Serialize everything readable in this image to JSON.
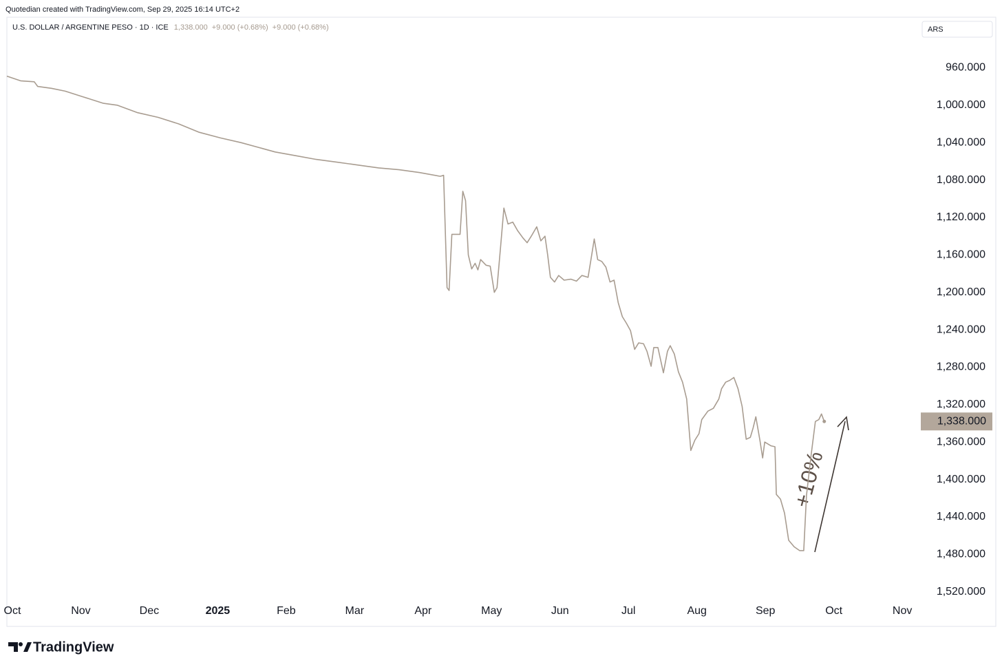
{
  "header": {
    "credit": "Quotedian created with TradingView.com, Sep 29, 2025 16:14 UTC+2"
  },
  "footer": {
    "brand": "TradingView"
  },
  "chart_data": {
    "type": "line",
    "legend_price": "1,338.000",
    "legend_change_1": "+9.000 (+0.68%)",
    "legend_change_2": "+9.000 (+0.68%)",
    "currency": "ARS",
    "annotation": "+10%",
    "last_value_label": "1,338.000",
    "inverted": true,
    "grid": false,
    "xlim": [
      -0.08,
      13.24
    ],
    "xticks": [
      {
        "value": 0,
        "label": "Oct"
      },
      {
        "value": 1,
        "label": "Nov"
      },
      {
        "value": 2,
        "label": "Dec"
      },
      {
        "value": 3,
        "label": "2025"
      },
      {
        "value": 4,
        "label": "Feb"
      },
      {
        "value": 5,
        "label": "Mar"
      },
      {
        "value": 6,
        "label": "Apr"
      },
      {
        "value": 7,
        "label": "May"
      },
      {
        "value": 8,
        "label": "Jun"
      },
      {
        "value": 9,
        "label": "Jul"
      },
      {
        "value": 10,
        "label": "Aug"
      },
      {
        "value": 11,
        "label": "Sep"
      },
      {
        "value": 12,
        "label": "Oct"
      },
      {
        "value": 13,
        "label": "Nov"
      }
    ],
    "ylim": [
      906,
      1557
    ],
    "yticks": [
      {
        "value": 960,
        "label": "960.000"
      },
      {
        "value": 1000,
        "label": "1,000.000"
      },
      {
        "value": 1040,
        "label": "1,040.000"
      },
      {
        "value": 1080,
        "label": "1,080.000"
      },
      {
        "value": 1120,
        "label": "1,120.000"
      },
      {
        "value": 1160,
        "label": "1,160.000"
      },
      {
        "value": 1200,
        "label": "1,200.000"
      },
      {
        "value": 1240,
        "label": "1,240.000"
      },
      {
        "value": 1280,
        "label": "1,280.000"
      },
      {
        "value": 1320,
        "label": "1,320.000"
      },
      {
        "value": 1360,
        "label": "1,360.000"
      },
      {
        "value": 1400,
        "label": "1,400.000"
      },
      {
        "value": 1440,
        "label": "1,440.000"
      },
      {
        "value": 1480,
        "label": "1,480.000"
      },
      {
        "value": 1520,
        "label": "1,520.000"
      }
    ],
    "x": [
      -0.08,
      0.12,
      0.32,
      0.37,
      0.57,
      0.77,
      1.03,
      1.33,
      1.53,
      1.83,
      2.13,
      2.43,
      2.73,
      3.04,
      3.34,
      3.59,
      3.84,
      4.14,
      4.44,
      4.75,
      5.05,
      5.35,
      5.65,
      5.95,
      6.25,
      6.3,
      6.35,
      6.38,
      6.42,
      6.54,
      6.58,
      6.62,
      6.66,
      6.71,
      6.76,
      6.8,
      6.84,
      6.92,
      6.98,
      7.04,
      7.08,
      7.13,
      7.18,
      7.24,
      7.31,
      7.38,
      7.46,
      7.52,
      7.58,
      7.66,
      7.72,
      7.78,
      7.82,
      7.86,
      7.92,
      7.98,
      8.06,
      8.16,
      8.24,
      8.32,
      8.41,
      8.45,
      8.5,
      8.55,
      8.61,
      8.67,
      8.73,
      8.79,
      8.85,
      8.91,
      8.97,
      9.03,
      9.09,
      9.15,
      9.22,
      9.27,
      9.33,
      9.37,
      9.43,
      9.51,
      9.57,
      9.61,
      9.67,
      9.73,
      9.79,
      9.85,
      9.91,
      9.97,
      10.03,
      10.07,
      10.16,
      10.24,
      10.32,
      10.36,
      10.42,
      10.48,
      10.54,
      10.6,
      10.66,
      10.72,
      10.78,
      10.82,
      10.86,
      10.92,
      10.96,
      10.99,
      11.08,
      11.14,
      11.16,
      11.22,
      11.28,
      11.34,
      11.42,
      11.5,
      11.56,
      11.6,
      11.67,
      11.73,
      11.78,
      11.82,
      11.86
    ],
    "series": [
      {
        "name": "U.S. DOLLAR / ARGENTINE PESO · 1D · ICE",
        "color": "#a89c90",
        "values": [
          969,
          974,
          975,
          980,
          982,
          985,
          991,
          998,
          1000,
          1008,
          1013,
          1020,
          1029,
          1035,
          1040,
          1045,
          1050,
          1054,
          1058,
          1061,
          1064,
          1067,
          1069,
          1072,
          1076,
          1075,
          1195,
          1198,
          1138,
          1138,
          1092,
          1102,
          1160,
          1175,
          1169,
          1176,
          1165,
          1171,
          1172,
          1200,
          1195,
          1153,
          1110,
          1127,
          1125,
          1134,
          1142,
          1147,
          1140,
          1130,
          1145,
          1140,
          1160,
          1184,
          1189,
          1182,
          1187,
          1186,
          1188,
          1182,
          1184,
          1166,
          1143,
          1165,
          1167,
          1173,
          1189,
          1187,
          1211,
          1226,
          1233,
          1241,
          1261,
          1254,
          1255,
          1263,
          1279,
          1259,
          1259,
          1286,
          1263,
          1257,
          1266,
          1285,
          1296,
          1314,
          1369,
          1358,
          1351,
          1336,
          1327,
          1324,
          1314,
          1303,
          1296,
          1294,
          1291,
          1303,
          1322,
          1357,
          1355,
          1345,
          1333,
          1358,
          1377,
          1360,
          1364,
          1365,
          1416,
          1421,
          1436,
          1465,
          1472,
          1476,
          1476,
          1417,
          1373,
          1338,
          1336,
          1330,
          1338
        ]
      }
    ]
  }
}
